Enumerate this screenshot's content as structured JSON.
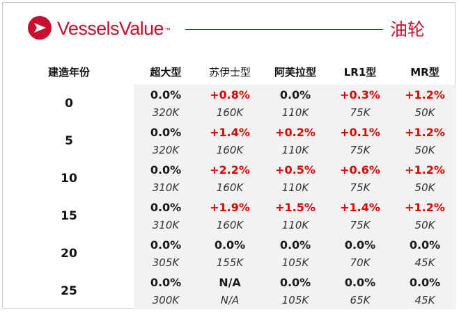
{
  "brand": {
    "name": "VesselsValue",
    "tm": "™",
    "color": "#c8102e"
  },
  "title": "油轮",
  "table": {
    "row_header": "建造年份",
    "columns": [
      "超大型",
      "苏伊士型",
      "阿芙拉型",
      "LR1型",
      "MR型"
    ],
    "rows": [
      {
        "age": "0",
        "cells": [
          {
            "pct": "0.0%",
            "value": "320K",
            "trend": "flat"
          },
          {
            "pct": "+0.8%",
            "value": "160K",
            "trend": "up"
          },
          {
            "pct": "0.0%",
            "value": "110K",
            "trend": "flat"
          },
          {
            "pct": "+0.3%",
            "value": "75K",
            "trend": "up"
          },
          {
            "pct": "+1.2%",
            "value": "50K",
            "trend": "up"
          }
        ]
      },
      {
        "age": "5",
        "cells": [
          {
            "pct": "0.0%",
            "value": "320K",
            "trend": "flat"
          },
          {
            "pct": "+1.4%",
            "value": "160K",
            "trend": "up"
          },
          {
            "pct": "+0.2%",
            "value": "110K",
            "trend": "up"
          },
          {
            "pct": "+0.1%",
            "value": "75K",
            "trend": "up"
          },
          {
            "pct": "+1.2%",
            "value": "50K",
            "trend": "up"
          }
        ]
      },
      {
        "age": "10",
        "cells": [
          {
            "pct": "0.0%",
            "value": "310K",
            "trend": "flat"
          },
          {
            "pct": "+2.2%",
            "value": "160K",
            "trend": "up"
          },
          {
            "pct": "+0.5%",
            "value": "110K",
            "trend": "up"
          },
          {
            "pct": "+0.6%",
            "value": "75K",
            "trend": "up"
          },
          {
            "pct": "+1.2%",
            "value": "50K",
            "trend": "up"
          }
        ]
      },
      {
        "age": "15",
        "cells": [
          {
            "pct": "0.0%",
            "value": "310K",
            "trend": "flat"
          },
          {
            "pct": "+1.9%",
            "value": "160K",
            "trend": "up"
          },
          {
            "pct": "+1.5%",
            "value": "110K",
            "trend": "up"
          },
          {
            "pct": "+1.4%",
            "value": "75K",
            "trend": "up"
          },
          {
            "pct": "+1.2%",
            "value": "50K",
            "trend": "up"
          }
        ]
      },
      {
        "age": "20",
        "cells": [
          {
            "pct": "0.0%",
            "value": "305K",
            "trend": "flat"
          },
          {
            "pct": "0.0%",
            "value": "155K",
            "trend": "flat"
          },
          {
            "pct": "0.0%",
            "value": "105K",
            "trend": "flat"
          },
          {
            "pct": "0.0%",
            "value": "70K",
            "trend": "flat"
          },
          {
            "pct": "0.0%",
            "value": "45K",
            "trend": "flat"
          }
        ]
      },
      {
        "age": "25",
        "cells": [
          {
            "pct": "0.0%",
            "value": "300K",
            "trend": "flat"
          },
          {
            "pct": "N/A",
            "value": "N/A",
            "trend": "flat"
          },
          {
            "pct": "0.0%",
            "value": "105K",
            "trend": "flat"
          },
          {
            "pct": "0.0%",
            "value": "65K",
            "trend": "flat"
          },
          {
            "pct": "0.0%",
            "value": "45K",
            "trend": "flat"
          }
        ]
      }
    ]
  },
  "colors": {
    "increase": "#e00000",
    "unchanged": "#1a1a1a",
    "shade": "#f2f2f2"
  }
}
